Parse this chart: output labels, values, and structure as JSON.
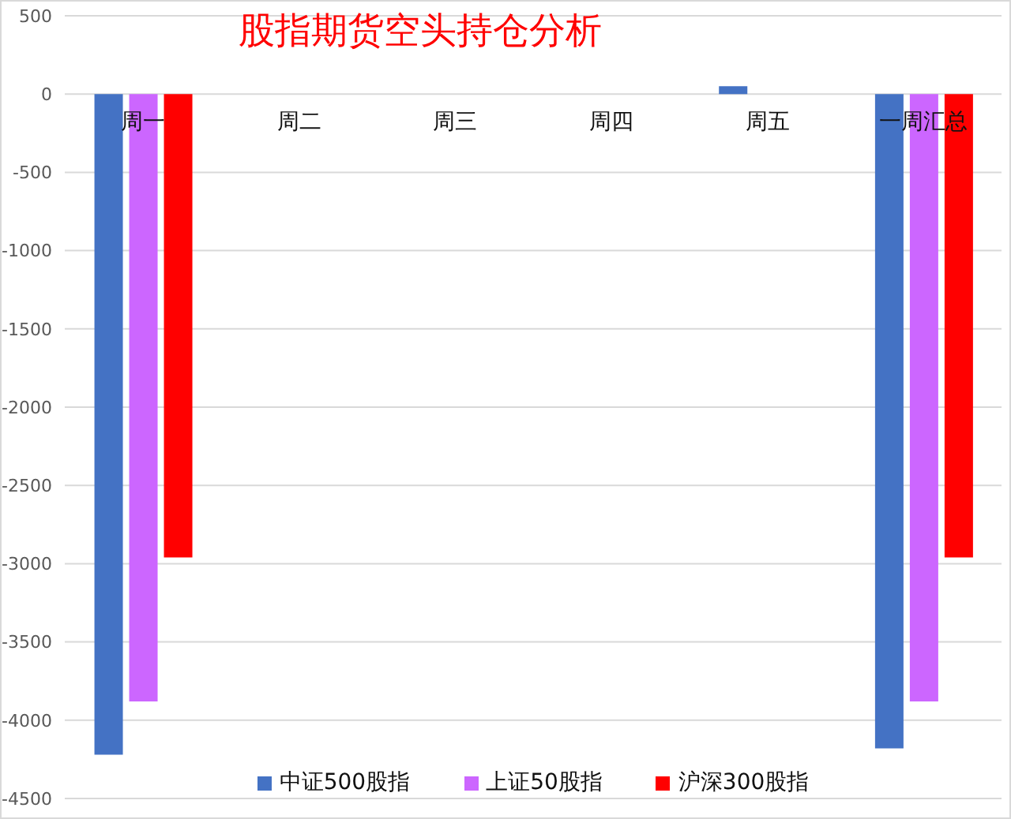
{
  "chart_data": {
    "type": "bar",
    "title": "股指期货空头持仓分析",
    "categories": [
      "周一",
      "周二",
      "周三",
      "周四",
      "周五",
      "一周汇总"
    ],
    "series": [
      {
        "name": "中证500股指",
        "color": "#4472c4",
        "values": [
          -4220,
          null,
          null,
          null,
          50,
          -4180
        ]
      },
      {
        "name": "上证50股指",
        "color": "#cc66ff",
        "values": [
          -3880,
          null,
          null,
          null,
          null,
          -3880
        ]
      },
      {
        "name": "沪深300股指",
        "color": "#ff0000",
        "values": [
          -2960,
          null,
          null,
          null,
          null,
          -2960
        ]
      }
    ],
    "ylim": [
      -4500,
      500
    ],
    "yticks": [
      -4500,
      -4000,
      -3500,
      -3000,
      -2500,
      -2000,
      -1500,
      -1000,
      -500,
      0,
      500
    ],
    "grid": "y",
    "legend": "bottom"
  }
}
